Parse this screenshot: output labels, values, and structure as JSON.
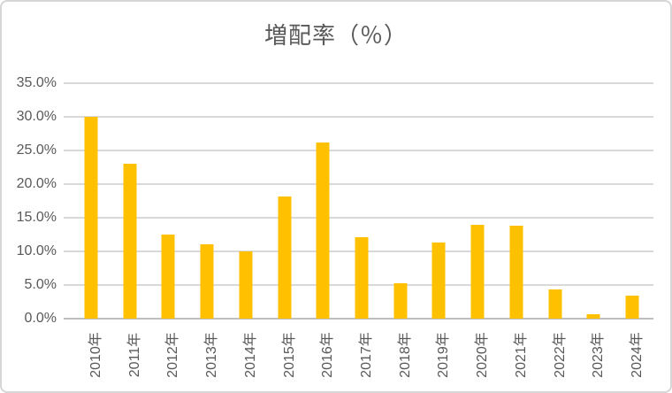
{
  "chart_data": {
    "type": "bar",
    "title": "増配率（％）",
    "categories": [
      "2010年",
      "2011年",
      "2012年",
      "2013年",
      "2014年",
      "2015年",
      "2016年",
      "2017年",
      "2018年",
      "2019年",
      "2020年",
      "2021年",
      "2022年",
      "2023年",
      "2024年"
    ],
    "values": [
      30.0,
      23.0,
      12.5,
      11.0,
      10.0,
      18.2,
      26.2,
      12.1,
      5.3,
      11.3,
      13.9,
      13.8,
      4.3,
      0.6,
      3.4
    ],
    "y_tick_labels": [
      "35.0%",
      "30.0%",
      "25.0%",
      "20.0%",
      "15.0%",
      "10.0%",
      "5.0%",
      "0.0%"
    ],
    "ylim": [
      0,
      35
    ],
    "y_tick_step": 5,
    "xlabel": "",
    "ylabel": "",
    "grid": true,
    "legend": "none",
    "bar_color": "#ffc000",
    "gridline_color": "#d9d9d9",
    "axis_line_color": "#bfbfbf",
    "text_color": "#595959",
    "background_color": "#ffffff"
  }
}
